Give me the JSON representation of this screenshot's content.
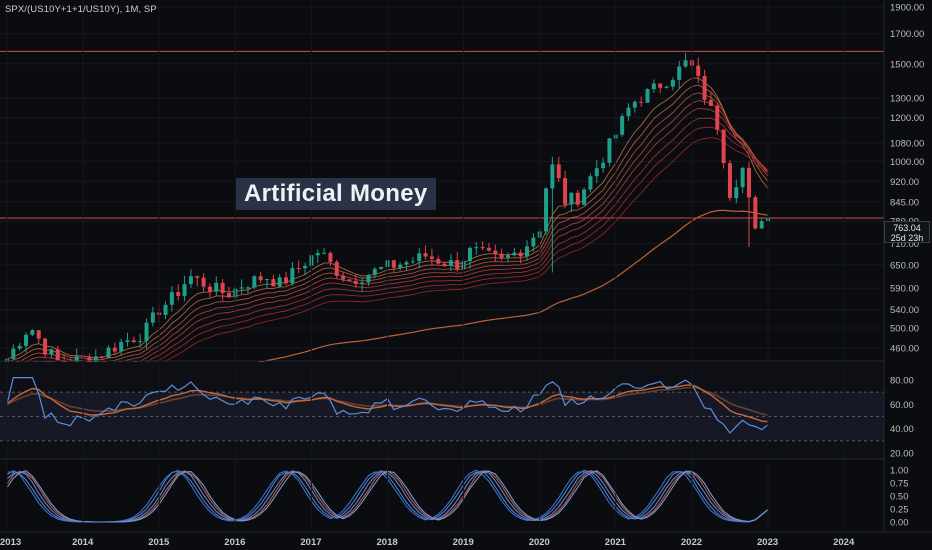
{
  "symbol_label": "SPX/(US10Y+1+1/US10Y), 1M, SP",
  "annotation": "Artificial Money",
  "last_price": {
    "value": "763.04",
    "countdown": "25d 23h"
  },
  "colors": {
    "background": "#0b0c10",
    "up": "#1f9e89",
    "down": "#e0444e",
    "ribbon_top": "#c8754a",
    "ribbon_bottom": "#b4262f",
    "rsi": "#5b8fd6",
    "rsi_ma": "#c46a3a",
    "stoch_k": "#4d7fd1",
    "stoch_d": "#c4583f",
    "hline": "#d44a4a"
  },
  "chart_data": [
    {
      "type": "candlestick",
      "title": "",
      "scale": "log",
      "ylim": [
        430,
        1900
      ],
      "y_ticks": [
        460,
        500,
        540,
        590,
        650,
        710,
        780,
        845,
        920,
        1000,
        1080,
        1200,
        1300,
        1500,
        1700,
        1900
      ],
      "y_tick_labels": [
        "460.00",
        "500.00",
        "540.00",
        "590.00",
        "650.00",
        "710.00",
        "780.00",
        "845.00",
        "920.00",
        "1000.00",
        "1080.00",
        "1200.00",
        "1300.00",
        "1500.00",
        "1700.00",
        "1900.00"
      ],
      "x_ticks": [
        "2013",
        "2014",
        "2015",
        "2016",
        "2017",
        "2018",
        "2019",
        "2020",
        "2021",
        "2022",
        "2023",
        "2024"
      ],
      "horizontal_lines": [
        1580,
        790
      ],
      "anchors": [
        [
          2013.0,
          440
        ],
        [
          2013.3,
          505
        ],
        [
          2013.5,
          460
        ],
        [
          2013.7,
          430
        ],
        [
          2014.0,
          440
        ],
        [
          2014.2,
          445
        ],
        [
          2014.5,
          470
        ],
        [
          2014.8,
          490
        ],
        [
          2015.0,
          540
        ],
        [
          2015.2,
          570
        ],
        [
          2015.4,
          620
        ],
        [
          2015.7,
          590
        ],
        [
          2015.9,
          575
        ],
        [
          2016.1,
          600
        ],
        [
          2016.4,
          620
        ],
        [
          2016.6,
          600
        ],
        [
          2016.9,
          655
        ],
        [
          2017.1,
          690
        ],
        [
          2017.3,
          640
        ],
        [
          2017.5,
          610
        ],
        [
          2017.8,
          630
        ],
        [
          2018.0,
          645
        ],
        [
          2018.3,
          660
        ],
        [
          2018.5,
          675
        ],
        [
          2018.7,
          660
        ],
        [
          2018.9,
          650
        ],
        [
          2019.1,
          690
        ],
        [
          2019.3,
          675
        ],
        [
          2019.5,
          660
        ],
        [
          2019.8,
          700
        ],
        [
          2020.0,
          760
        ],
        [
          2020.1,
          930
        ],
        [
          2020.2,
          1000
        ],
        [
          2020.3,
          845
        ],
        [
          2020.5,
          860
        ],
        [
          2020.8,
          1000
        ],
        [
          2021.0,
          1120
        ],
        [
          2021.2,
          1270
        ],
        [
          2021.5,
          1350
        ],
        [
          2021.8,
          1450
        ],
        [
          2021.95,
          1520
        ],
        [
          2022.05,
          1430
        ],
        [
          2022.2,
          1280
        ],
        [
          2022.35,
          1150
        ],
        [
          2022.5,
          880
        ],
        [
          2022.7,
          990
        ],
        [
          2022.8,
          720
        ],
        [
          2022.95,
          820
        ],
        [
          2023.0,
          790
        ]
      ]
    },
    {
      "type": "line",
      "title": "",
      "ylim": [
        15,
        88
      ],
      "y_ticks": [
        20,
        40,
        60,
        80
      ],
      "y_tick_labels": [
        "20.00",
        "40.00",
        "60.00",
        "80.00"
      ],
      "bands": [
        30,
        50,
        70
      ]
    },
    {
      "type": "line",
      "title": "",
      "ylim": [
        -0.05,
        1.05
      ],
      "y_ticks": [
        0,
        0.25,
        0.5,
        0.75,
        1.0
      ],
      "y_tick_labels": [
        "0.00",
        "0.25",
        "0.50",
        "0.75",
        "1.00"
      ],
      "x_ticks": [
        "2013",
        "2014",
        "2015",
        "2016",
        "2017",
        "2018",
        "2019",
        "2020",
        "2021",
        "2022",
        "2023",
        "2024"
      ]
    }
  ]
}
